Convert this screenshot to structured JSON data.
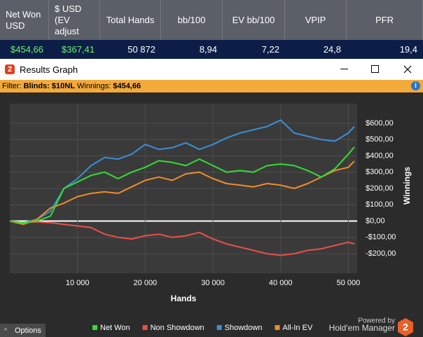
{
  "stats_table": {
    "headers": [
      "Net Won USD",
      "$ USD (EV adjust",
      "Total Hands",
      "bb/100",
      "EV bb/100",
      "VPIP",
      "PFR"
    ],
    "row": [
      "$454,66",
      "$367,41",
      "50 872",
      "8,94",
      "7,22",
      "24,8",
      "19,4"
    ]
  },
  "window": {
    "title": "Results Graph"
  },
  "filter": {
    "label": "Filter:",
    "blinds_label": "Blinds:",
    "blinds": "$10NL",
    "winnings_label": "Winnings:",
    "winnings": "$454,66"
  },
  "chart_data": {
    "type": "line",
    "x_label": "Hands",
    "y_label": "Winnings",
    "x": [
      0,
      2000,
      4000,
      6000,
      8000,
      10000,
      12000,
      14000,
      16000,
      18000,
      20000,
      22000,
      24000,
      26000,
      28000,
      30000,
      32000,
      34000,
      36000,
      38000,
      40000,
      42000,
      44000,
      46000,
      48000,
      50000,
      50872
    ],
    "series": [
      {
        "name": "Net Won",
        "color": "#33dd33",
        "values": [
          0,
          -10,
          0,
          30,
          200,
          240,
          280,
          300,
          260,
          300,
          330,
          370,
          360,
          340,
          380,
          340,
          300,
          310,
          300,
          340,
          350,
          340,
          310,
          270,
          320,
          410,
          454.66
        ]
      },
      {
        "name": "Non Showdown",
        "color": "#e8504a",
        "values": [
          0,
          -10,
          -5,
          -10,
          -20,
          -30,
          -40,
          -80,
          -100,
          -110,
          -90,
          -80,
          -100,
          -90,
          -70,
          -110,
          -140,
          -160,
          -180,
          -200,
          -210,
          -200,
          -180,
          -170,
          -150,
          -130,
          -140
        ]
      },
      {
        "name": "Showdown",
        "color": "#3a8fd8",
        "values": [
          0,
          -10,
          10,
          60,
          200,
          260,
          340,
          390,
          380,
          410,
          470,
          440,
          450,
          480,
          440,
          470,
          510,
          540,
          560,
          580,
          620,
          540,
          520,
          500,
          490,
          540,
          580
        ]
      },
      {
        "name": "All-In EV",
        "color": "#f08c2a",
        "values": [
          0,
          -20,
          10,
          80,
          110,
          150,
          170,
          180,
          170,
          210,
          250,
          270,
          250,
          290,
          300,
          260,
          230,
          220,
          210,
          230,
          220,
          200,
          230,
          270,
          310,
          330,
          367.41
        ]
      }
    ],
    "xlim": [
      0,
      51300
    ],
    "ylim": [
      -320,
      720
    ],
    "xticks": [
      {
        "value": 10000,
        "label": "10 000"
      },
      {
        "value": 20000,
        "label": "20 000"
      },
      {
        "value": 30000,
        "label": "30 000"
      },
      {
        "value": 40000,
        "label": "40 000"
      },
      {
        "value": 50000,
        "label": "50 000"
      }
    ],
    "yticks": [
      {
        "value": -200,
        "label": "-$200,00"
      },
      {
        "value": -100,
        "label": "-$100,00"
      },
      {
        "value": 0,
        "label": "$0,00"
      },
      {
        "value": 100,
        "label": "$100,00"
      },
      {
        "value": 200,
        "label": "$200,00"
      },
      {
        "value": 300,
        "label": "$300,00"
      },
      {
        "value": 400,
        "label": "$400,00"
      },
      {
        "value": 500,
        "label": "$500,00"
      },
      {
        "value": 600,
        "label": "$600,00"
      }
    ],
    "grid": true,
    "legend": "bottom"
  },
  "options_button": "Options",
  "powered_by": {
    "line1": "Powered by",
    "line2": "Hold'em Manager",
    "logo": "2"
  }
}
